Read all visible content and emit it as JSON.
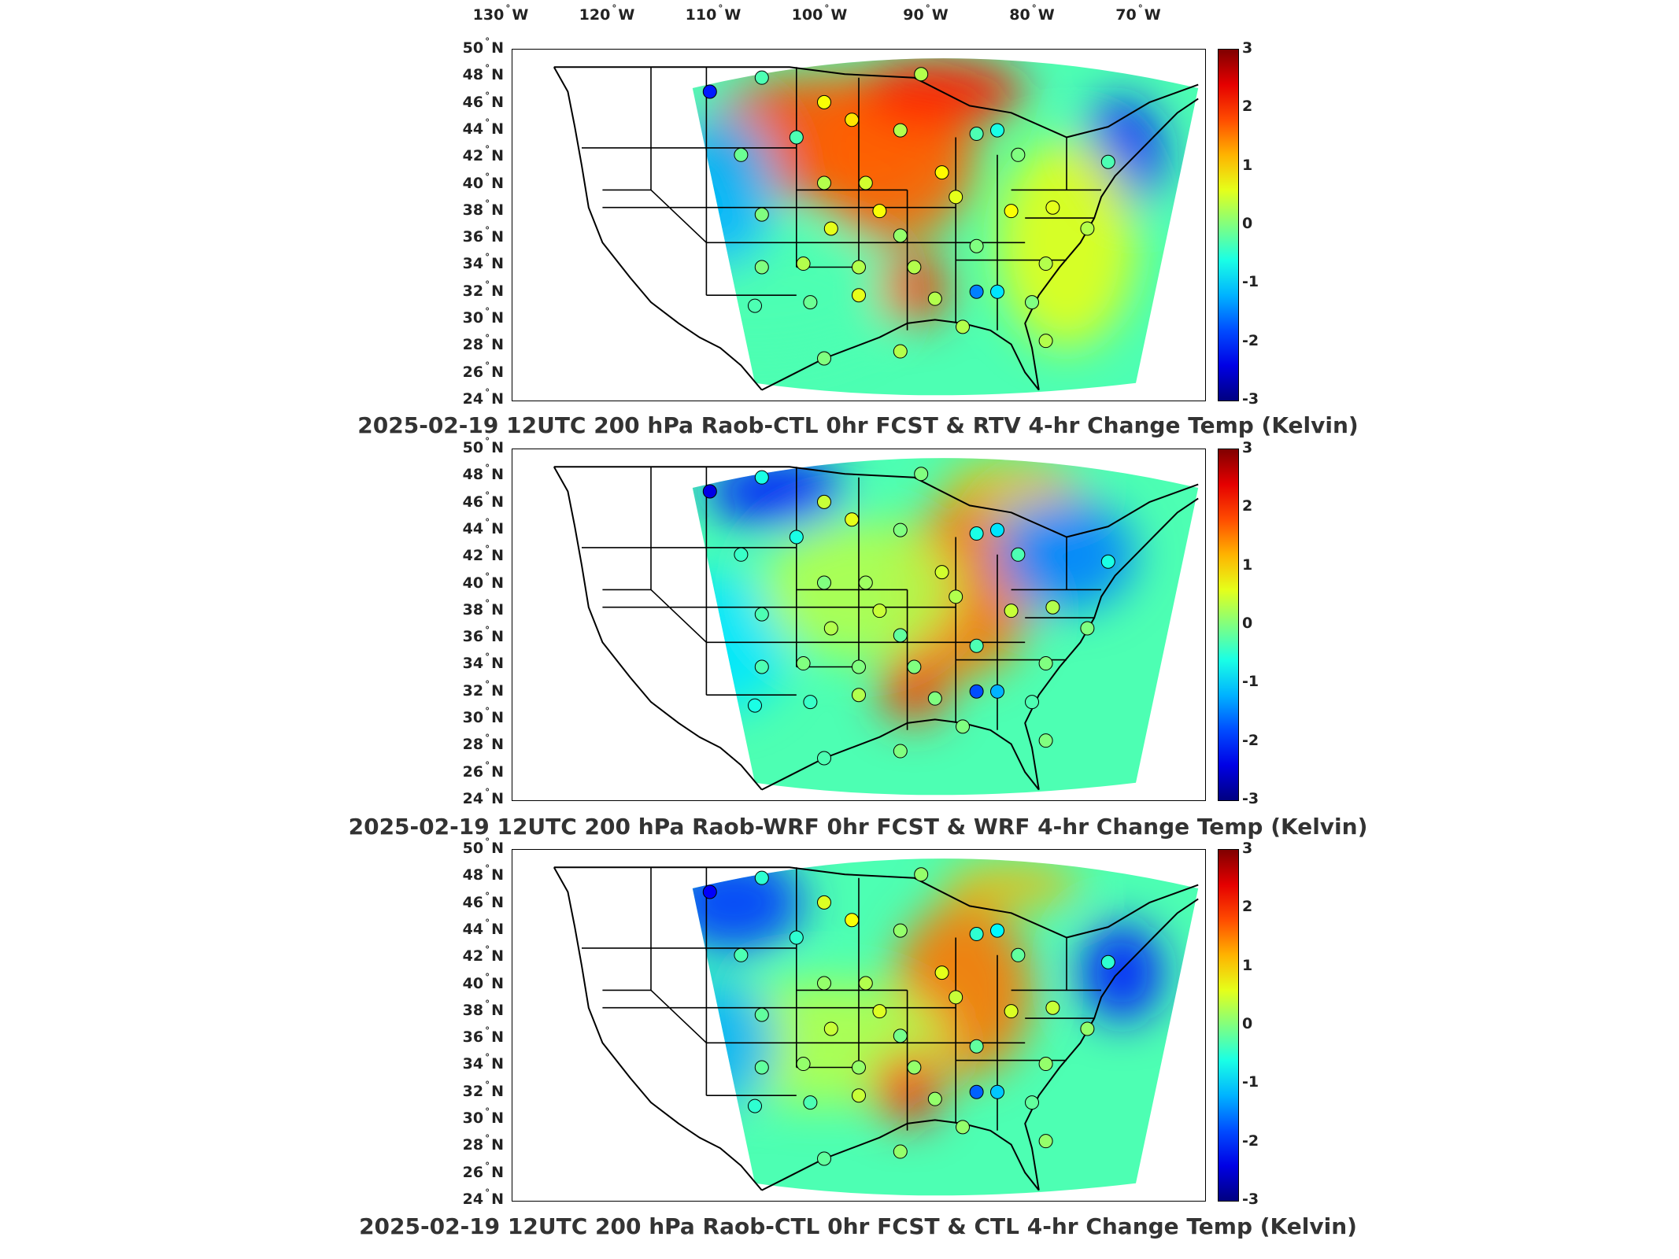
{
  "longitude_labels": [
    {
      "deg": "130",
      "hem": "W"
    },
    {
      "deg": "120",
      "hem": "W"
    },
    {
      "deg": "110",
      "hem": "W"
    },
    {
      "deg": "100",
      "hem": "W"
    },
    {
      "deg": "90",
      "hem": "W"
    },
    {
      "deg": "80",
      "hem": "W"
    },
    {
      "deg": "70",
      "hem": "W"
    }
  ],
  "latitude_labels": [
    {
      "deg": "50",
      "hem": "N"
    },
    {
      "deg": "48",
      "hem": "N"
    },
    {
      "deg": "46",
      "hem": "N"
    },
    {
      "deg": "44",
      "hem": "N"
    },
    {
      "deg": "42",
      "hem": "N"
    },
    {
      "deg": "40",
      "hem": "N"
    },
    {
      "deg": "38",
      "hem": "N"
    },
    {
      "deg": "36",
      "hem": "N"
    },
    {
      "deg": "34",
      "hem": "N"
    },
    {
      "deg": "32",
      "hem": "N"
    },
    {
      "deg": "30",
      "hem": "N"
    },
    {
      "deg": "28",
      "hem": "N"
    },
    {
      "deg": "26",
      "hem": "N"
    },
    {
      "deg": "24",
      "hem": "N"
    }
  ],
  "colorbar": {
    "min": -3,
    "max": 3,
    "ticks": [
      "3",
      "2",
      "1",
      "0",
      "-1",
      "-2",
      "-3"
    ],
    "colormap": "jet"
  },
  "panels": [
    {
      "title": "2025-02-19 12UTC 200 hPa Raob-CTL 0hr FCST & RTV 4-hr Change Temp (Kelvin)"
    },
    {
      "title": "2025-02-19 12UTC 200 hPa Raob-WRF 0hr FCST & WRF 4-hr Change Temp (Kelvin)"
    },
    {
      "title": "2025-02-19 12UTC 200 hPa Raob-CTL 0hr FCST & CTL 4-hr Change Temp (Kelvin)"
    }
  ]
}
